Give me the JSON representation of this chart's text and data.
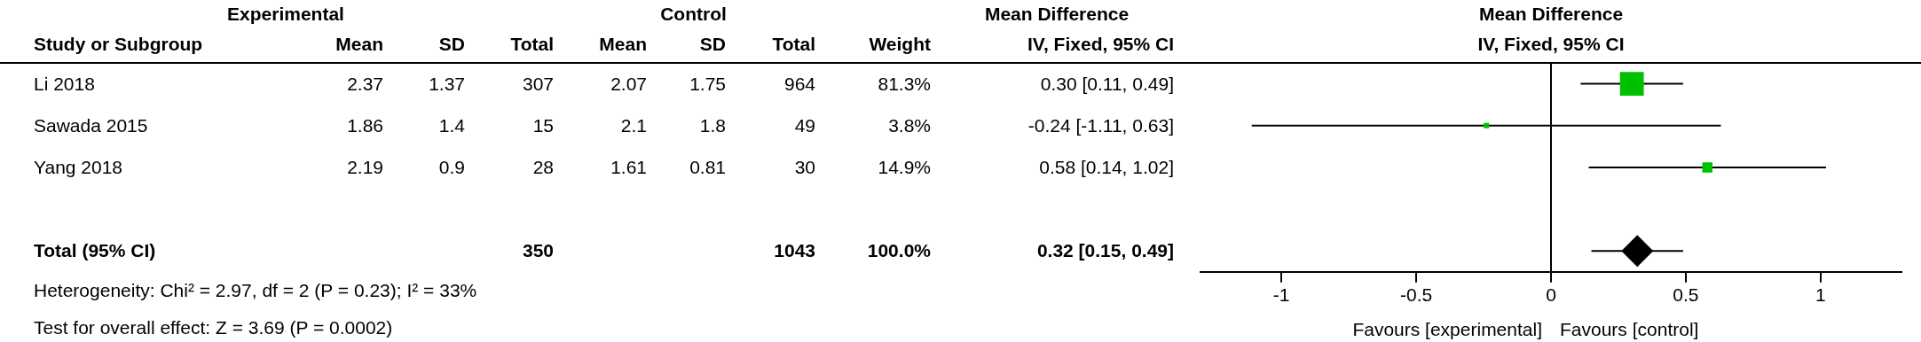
{
  "chart_data": [
    {
      "type": "other",
      "categories": [
        "Study or Subgroup",
        "Mean",
        "SD",
        "Total",
        "Mean",
        "SD",
        "Total",
        "Weight",
        "IV, Fixed, 95% CI"
      ],
      "y_categories": [
        "Li 2018",
        "Sawada 2015",
        "Yang 2018",
        null,
        "Total (95% CI)"
      ],
      "cell_labels": [
        [
          "2.37",
          "1.37",
          "307",
          "2.07",
          "1.75",
          "964",
          "81.3%",
          "0.30 [0.11, 0.49]"
        ],
        [
          "1.86",
          "1.4",
          "15",
          "2.1",
          "1.8",
          "49",
          "3.8%",
          "-0.24 [-1.11, 0.63]"
        ],
        [
          "2.19",
          "0.9",
          "28",
          "1.61",
          "0.81",
          "30",
          "14.9%",
          "0.58 [0.14, 1.02]"
        ],
        [
          null,
          null,
          null,
          null,
          null,
          null,
          null,
          null
        ],
        [
          null,
          null,
          "350",
          null,
          null,
          "1043",
          "100.0%",
          "0.32 [0.15, 0.49]"
        ]
      ],
      "annotations": [
        "Experimental",
        "Control",
        "Mean Difference",
        "Heterogeneity: Chi² = 2.97, df = 2 (P = 0.23); I² = 33%",
        "Test for overall effect: Z = 3.69 (P = 0.0002)"
      ]
    },
    {
      "type": "scatter",
      "orientation": "horizontal",
      "title": "Mean Difference",
      "subtitle": "IV, Fixed, 95% CI",
      "categories": [
        null,
        null,
        null,
        null,
        null
      ],
      "xlim": [
        -1.3,
        1.3
      ],
      "xticks": [
        -1,
        -0.5,
        0,
        0.5,
        1
      ],
      "tick_labels": "x",
      "grid": false,
      "ref_lines": [
        {
          "axis": "x",
          "value": 0,
          "color": "#000000"
        }
      ],
      "annotations": [
        "Favours [experimental]",
        "Favours [control]"
      ],
      "series": [
        {
          "type": "bubble",
          "marker": "square",
          "color": "#00c000",
          "values": [
            0.3,
            -0.24,
            0.58,
            null,
            null
          ],
          "sizes": [
            1,
            0.047,
            0.183,
            null,
            null
          ],
          "errors": [
            [
              0.11,
              0.49
            ],
            [
              -1.11,
              0.63
            ],
            [
              0.14,
              1.02
            ],
            null,
            null
          ]
        },
        {
          "type": "scatter",
          "marker": "diamond",
          "color": "#000000",
          "values": [
            null,
            null,
            null,
            null,
            0.32
          ],
          "errors": [
            null,
            null,
            null,
            null,
            [
              0.15,
              0.49
            ]
          ]
        }
      ]
    }
  ]
}
